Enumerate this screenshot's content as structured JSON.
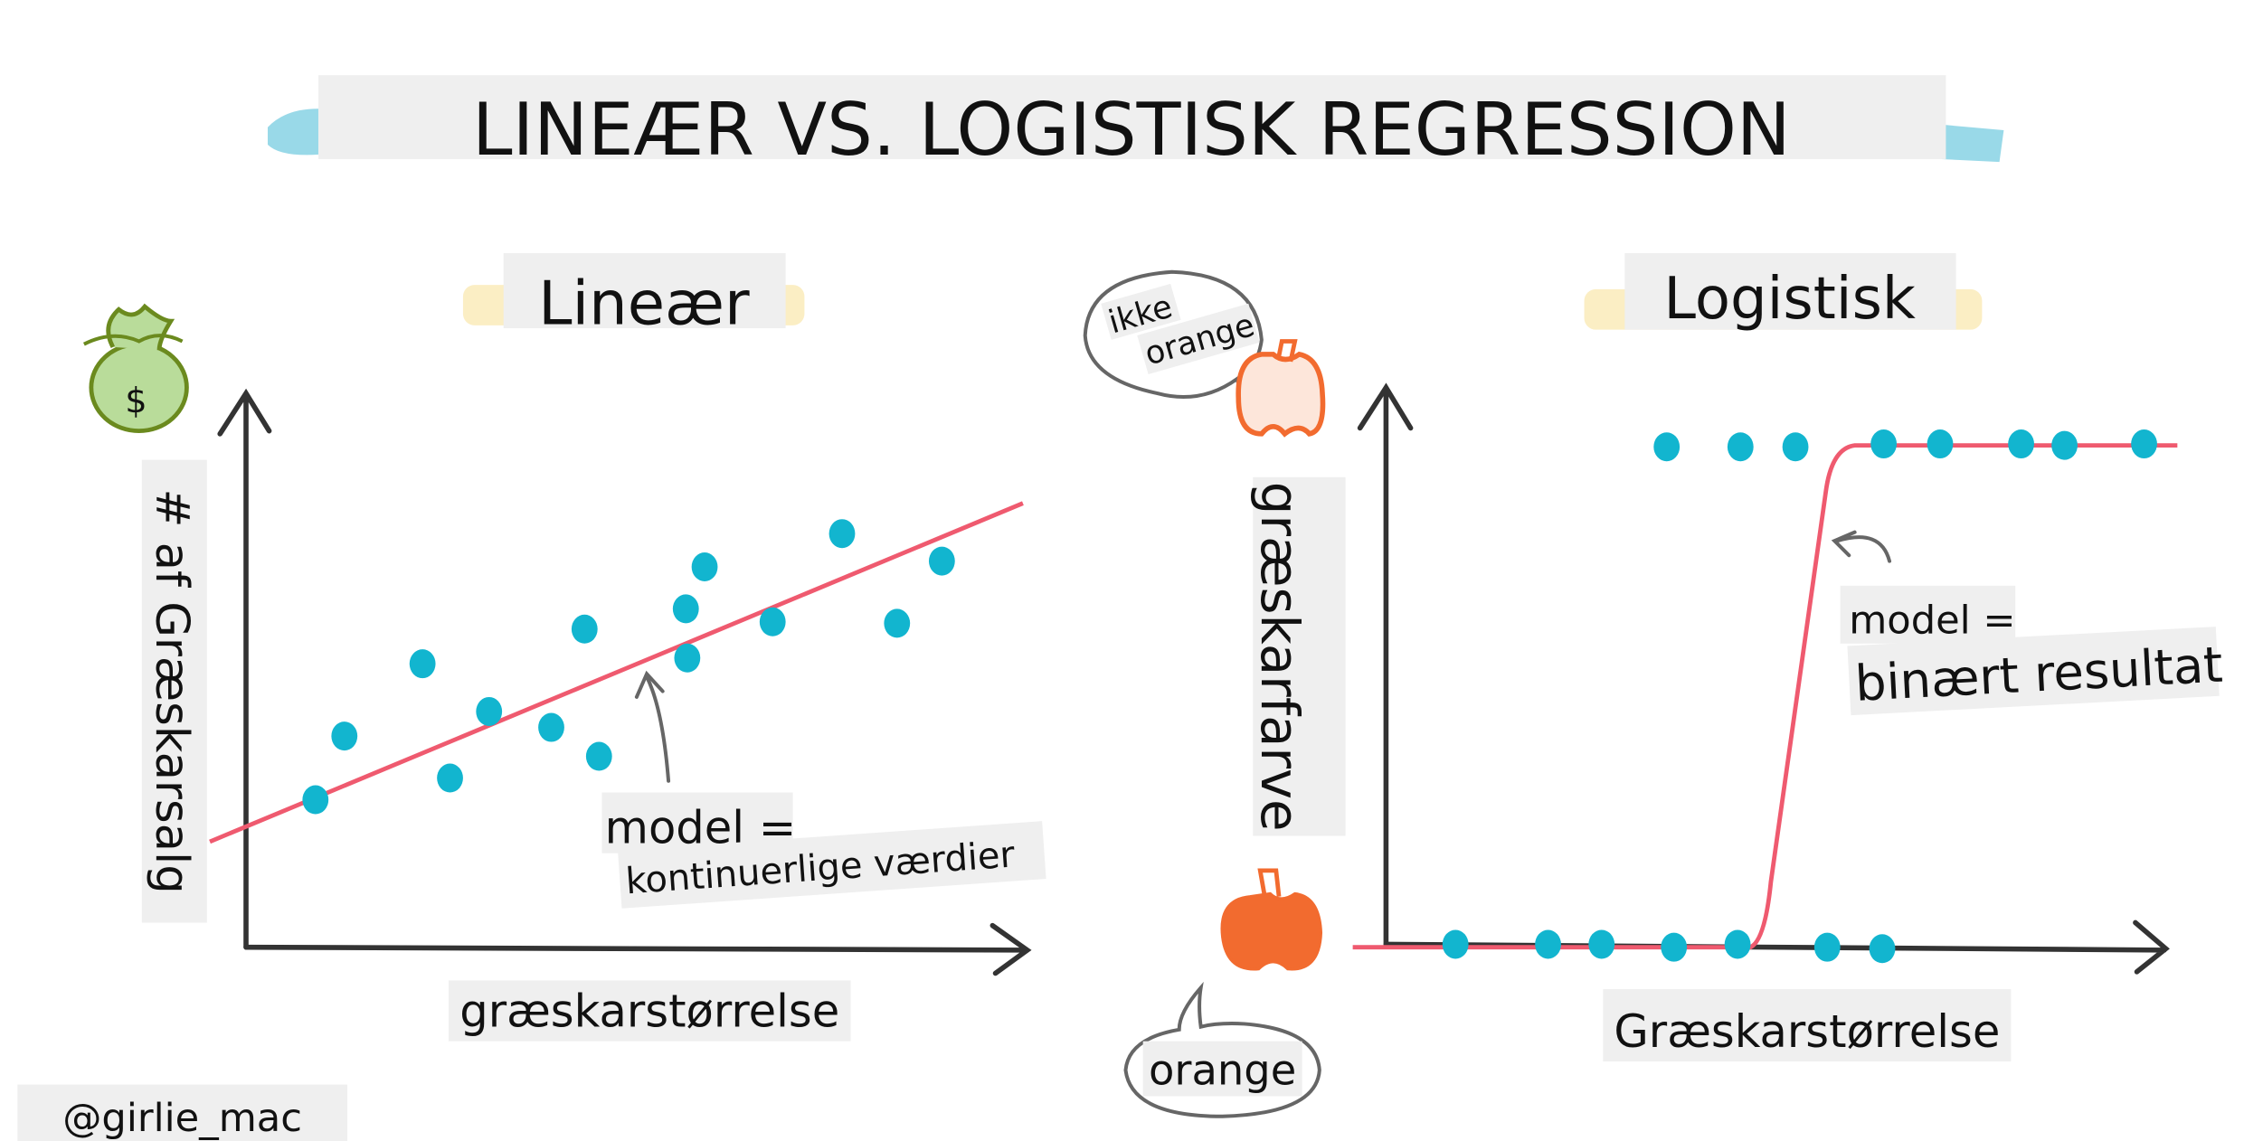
{
  "title": "LINEÆR VS. LOGISTISK REGRESSION",
  "linear": {
    "heading": "Lineær",
    "y_label": "# af Græskarsalg",
    "x_label": "græskarstørrelse",
    "model_label": "model =",
    "model_desc": "kontinuerlige værdier",
    "money_symbol": "$"
  },
  "logistic": {
    "heading": "Logistisk",
    "y_label": "græskarfarve",
    "x_label": "Græskarstørrelse",
    "model_label": "model =",
    "model_desc": "binært resultat",
    "bubble_top_line1": "ikke",
    "bubble_top_line2": "orange",
    "bubble_bottom": "orange"
  },
  "credit": "@girlie_mac",
  "colors": {
    "dot": "#12b5cf",
    "model_line": "#ef5a6f",
    "axis": "#333333",
    "label_bg": "#efefef",
    "pumpkin": "#f26b2f",
    "money_bag": "#9fc87a",
    "highlight_yellow": "#fbeec4",
    "highlight_blue": "#7fd0e2"
  },
  "icons": [
    "money-bag-icon",
    "pumpkin-outline-icon",
    "pumpkin-filled-icon",
    "speech-bubble-icon"
  ]
}
